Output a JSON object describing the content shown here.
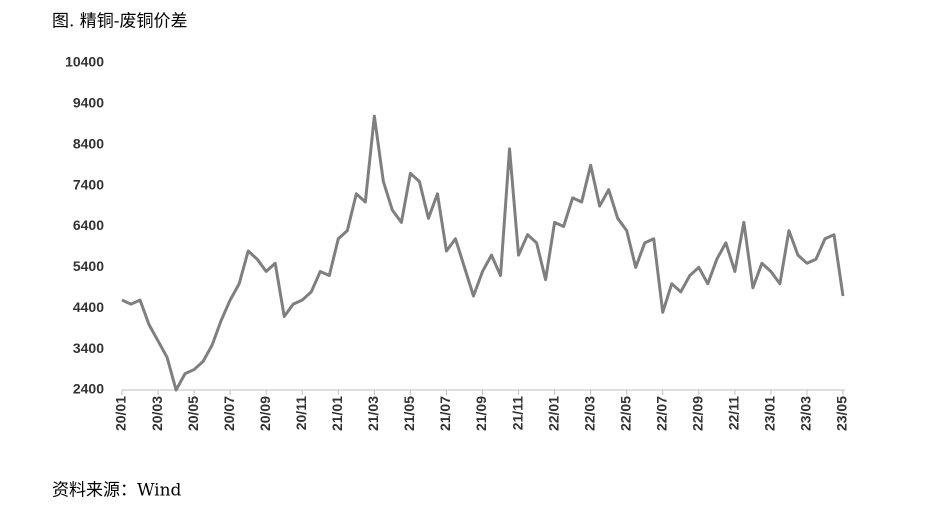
{
  "chart_data": {
    "type": "line",
    "title": "图. 精铜-废铜价差",
    "source": "资料来源：Wind",
    "categories": [
      "20/01",
      null,
      null,
      null,
      "20/03",
      null,
      null,
      null,
      "20/05",
      null,
      null,
      null,
      "20/07",
      null,
      null,
      null,
      "20/09",
      null,
      null,
      null,
      "20/11",
      null,
      null,
      null,
      "21/01",
      null,
      null,
      null,
      "21/03",
      null,
      null,
      null,
      "21/05",
      null,
      null,
      null,
      "21/07",
      null,
      null,
      null,
      "21/09",
      null,
      null,
      null,
      "21/11",
      null,
      null,
      null,
      "22/01",
      null,
      null,
      null,
      "22/03",
      null,
      null,
      null,
      "22/05",
      null,
      null,
      null,
      "22/07",
      null,
      null,
      null,
      "22/09",
      null,
      null,
      null,
      "22/11",
      null,
      null,
      null,
      "23/01",
      null,
      null,
      null,
      "23/03",
      null,
      null,
      null,
      "23/05"
    ],
    "values": [
      4600,
      4500,
      4600,
      4000,
      3600,
      3200,
      2400,
      2800,
      2900,
      3100,
      3500,
      4100,
      4600,
      5000,
      5800,
      5600,
      5300,
      5500,
      4200,
      4500,
      4600,
      4800,
      5300,
      5200,
      6100,
      6300,
      7200,
      7000,
      9100,
      7500,
      6800,
      6500,
      7700,
      7500,
      6600,
      7200,
      5800,
      6100,
      5400,
      4700,
      5300,
      5700,
      5200,
      8300,
      5700,
      6200,
      6000,
      5100,
      6500,
      6400,
      7100,
      7000,
      7900,
      6900,
      7300,
      6600,
      6300,
      5400,
      6000,
      6100,
      4300,
      5000,
      4800,
      5200,
      5400,
      5000,
      5600,
      6000,
      5300,
      6500,
      4900,
      5500,
      5300,
      5000,
      6300,
      5700,
      5500,
      5600,
      6100,
      6200,
      4700
    ],
    "color": "#7f7f7f",
    "ylim": [
      2400,
      10400
    ],
    "yticks": [
      2400,
      3400,
      4400,
      5400,
      6400,
      7400,
      8400,
      9400,
      10400
    ],
    "grid": false
  }
}
